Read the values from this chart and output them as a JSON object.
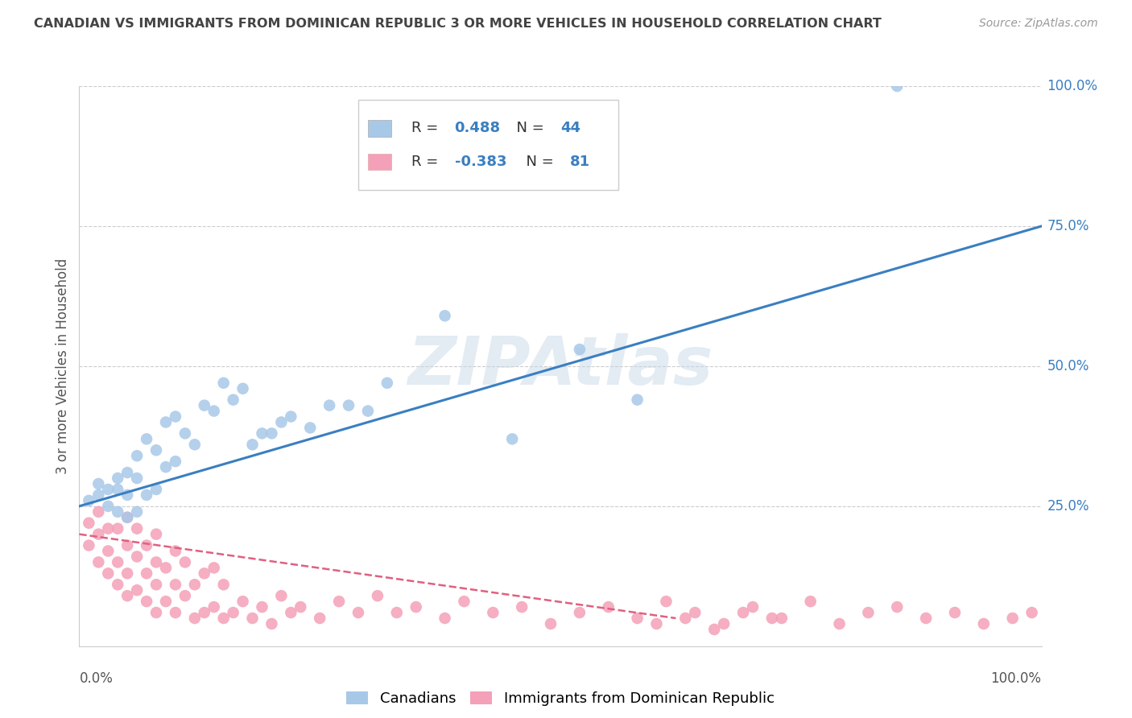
{
  "title": "CANADIAN VS IMMIGRANTS FROM DOMINICAN REPUBLIC 3 OR MORE VEHICLES IN HOUSEHOLD CORRELATION CHART",
  "source": "Source: ZipAtlas.com",
  "ylabel": "3 or more Vehicles in Household",
  "xlim": [
    0.0,
    1.0
  ],
  "ylim": [
    0.0,
    1.0
  ],
  "ytick_positions": [
    0.25,
    0.5,
    0.75,
    1.0
  ],
  "legend_blue_r": "0.488",
  "legend_blue_n": "44",
  "legend_pink_r": "-0.383",
  "legend_pink_n": "81",
  "legend1_label": "Canadians",
  "legend2_label": "Immigrants from Dominican Republic",
  "blue_color": "#a8c8e8",
  "pink_color": "#f4a0b8",
  "blue_line_color": "#3a7fc1",
  "pink_line_color": "#e06080",
  "watermark": "ZIPAtlas",
  "title_color": "#444444",
  "r_value_color": "#3a7fc1",
  "background_color": "#ffffff",
  "grid_color": "#cccccc",
  "watermark_color": "#c8d8e8",
  "watermark_fontsize": 60,
  "blue_scatter_x": [
    0.01,
    0.02,
    0.02,
    0.03,
    0.03,
    0.04,
    0.04,
    0.04,
    0.05,
    0.05,
    0.05,
    0.06,
    0.06,
    0.06,
    0.07,
    0.07,
    0.08,
    0.08,
    0.09,
    0.09,
    0.1,
    0.1,
    0.11,
    0.12,
    0.13,
    0.14,
    0.15,
    0.16,
    0.17,
    0.18,
    0.19,
    0.2,
    0.21,
    0.22,
    0.24,
    0.26,
    0.28,
    0.3,
    0.32,
    0.38,
    0.45,
    0.52,
    0.58,
    0.85
  ],
  "blue_scatter_y": [
    0.26,
    0.27,
    0.29,
    0.25,
    0.28,
    0.24,
    0.28,
    0.3,
    0.23,
    0.27,
    0.31,
    0.24,
    0.3,
    0.34,
    0.27,
    0.37,
    0.28,
    0.35,
    0.32,
    0.4,
    0.33,
    0.41,
    0.38,
    0.36,
    0.43,
    0.42,
    0.47,
    0.44,
    0.46,
    0.36,
    0.38,
    0.38,
    0.4,
    0.41,
    0.39,
    0.43,
    0.43,
    0.42,
    0.47,
    0.59,
    0.37,
    0.53,
    0.44,
    1.0
  ],
  "pink_scatter_x": [
    0.01,
    0.01,
    0.02,
    0.02,
    0.02,
    0.03,
    0.03,
    0.03,
    0.04,
    0.04,
    0.04,
    0.05,
    0.05,
    0.05,
    0.05,
    0.06,
    0.06,
    0.06,
    0.07,
    0.07,
    0.07,
    0.08,
    0.08,
    0.08,
    0.08,
    0.09,
    0.09,
    0.1,
    0.1,
    0.1,
    0.11,
    0.11,
    0.12,
    0.12,
    0.13,
    0.13,
    0.14,
    0.14,
    0.15,
    0.15,
    0.16,
    0.17,
    0.18,
    0.19,
    0.2,
    0.21,
    0.22,
    0.23,
    0.25,
    0.27,
    0.29,
    0.31,
    0.33,
    0.35,
    0.38,
    0.4,
    0.43,
    0.46,
    0.49,
    0.52,
    0.55,
    0.58,
    0.61,
    0.64,
    0.67,
    0.7,
    0.73,
    0.76,
    0.79,
    0.82,
    0.85,
    0.88,
    0.91,
    0.94,
    0.97,
    0.99,
    0.6,
    0.63,
    0.66,
    0.69,
    0.72
  ],
  "pink_scatter_y": [
    0.18,
    0.22,
    0.15,
    0.2,
    0.24,
    0.13,
    0.17,
    0.21,
    0.11,
    0.15,
    0.21,
    0.09,
    0.13,
    0.18,
    0.23,
    0.1,
    0.16,
    0.21,
    0.08,
    0.13,
    0.18,
    0.06,
    0.11,
    0.15,
    0.2,
    0.08,
    0.14,
    0.06,
    0.11,
    0.17,
    0.09,
    0.15,
    0.05,
    0.11,
    0.06,
    0.13,
    0.07,
    0.14,
    0.05,
    0.11,
    0.06,
    0.08,
    0.05,
    0.07,
    0.04,
    0.09,
    0.06,
    0.07,
    0.05,
    0.08,
    0.06,
    0.09,
    0.06,
    0.07,
    0.05,
    0.08,
    0.06,
    0.07,
    0.04,
    0.06,
    0.07,
    0.05,
    0.08,
    0.06,
    0.04,
    0.07,
    0.05,
    0.08,
    0.04,
    0.06,
    0.07,
    0.05,
    0.06,
    0.04,
    0.05,
    0.06,
    0.04,
    0.05,
    0.03,
    0.06,
    0.05
  ],
  "blue_line_x": [
    0.0,
    1.0
  ],
  "blue_line_y": [
    0.25,
    0.75
  ],
  "pink_line_x": [
    0.0,
    0.62
  ],
  "pink_line_y": [
    0.2,
    0.05
  ]
}
